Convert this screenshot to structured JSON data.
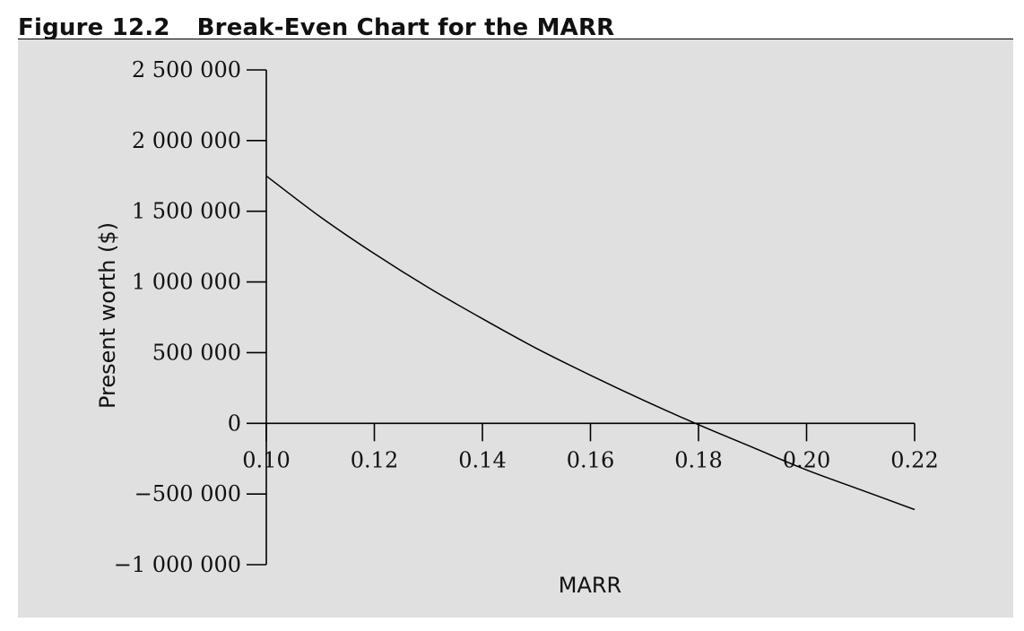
{
  "figure": {
    "number": "Figure 12.2",
    "title": "Break-Even Chart for the MARR"
  },
  "chart_data": {
    "type": "line",
    "title": "Break-Even Chart for the MARR",
    "xlabel": "MARR",
    "ylabel": "Present worth ($)",
    "xlim": [
      0.1,
      0.22
    ],
    "ylim": [
      -1000000,
      2500000
    ],
    "x_ticks": [
      0.1,
      0.12,
      0.14,
      0.16,
      0.18,
      0.2,
      0.22
    ],
    "x_tick_labels": [
      "0.10",
      "0.12",
      "0.14",
      "0.16",
      "0.18",
      "0.20",
      "0.22"
    ],
    "y_ticks": [
      2500000,
      2000000,
      1500000,
      1000000,
      500000,
      0,
      -500000,
      -1000000
    ],
    "y_tick_labels": [
      "2 500 000",
      "2 000 000",
      "1 500 000",
      "1 000 000",
      "500 000",
      "0",
      "−500 000",
      "−1 000 000"
    ],
    "grid": false,
    "series": [
      {
        "x": [
          0.1,
          0.11,
          0.12,
          0.13,
          0.14,
          0.15,
          0.16,
          0.17,
          0.18,
          0.19,
          0.2,
          0.21,
          0.22
        ],
        "y": [
          1750000,
          1460000,
          1200000,
          960000,
          740000,
          530000,
          340000,
          160000,
          -10000,
          -170000,
          -330000,
          -470000,
          -610000
        ],
        "color": "#000000"
      }
    ]
  }
}
